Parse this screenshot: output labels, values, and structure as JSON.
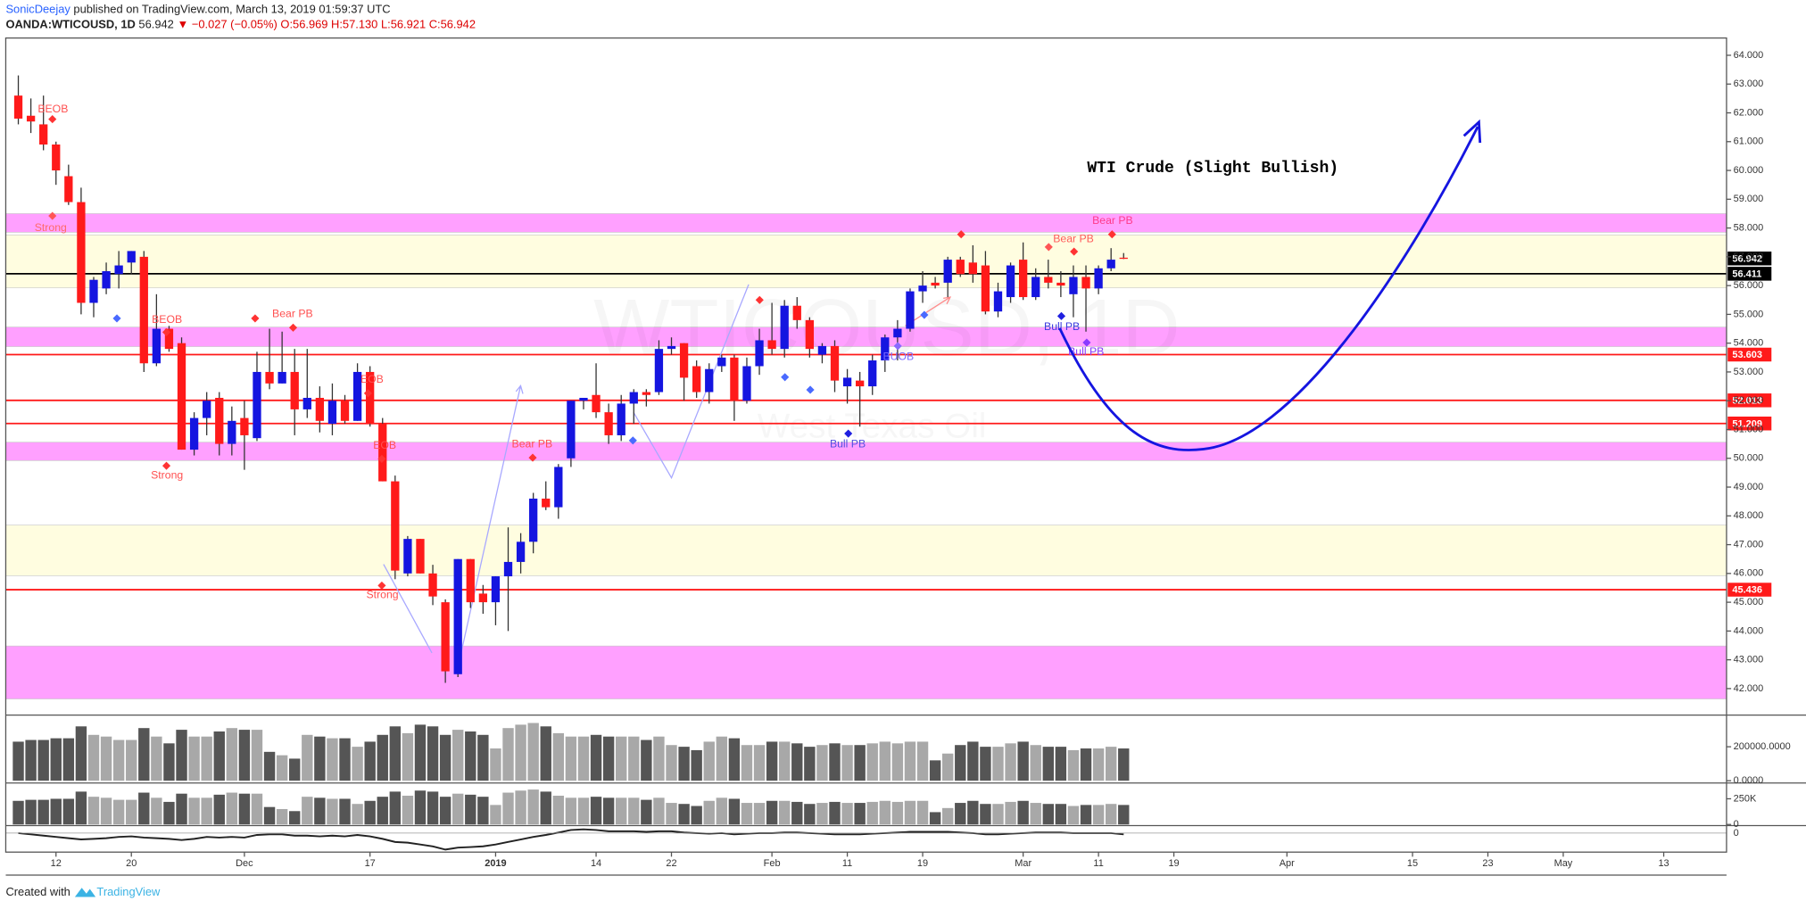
{
  "header": {
    "author": "SonicDeejay",
    "published": "published on TradingView.com, March 13, 2019 01:59:37 UTC",
    "symbol": "OANDA:WTICOUSD, 1D",
    "last": "56.942",
    "change": "▼ −0.027 (−0.05%)",
    "ohlc": "O:56.969 H:57.130 L:56.921 C:56.942"
  },
  "footer": {
    "created": "Created with",
    "brand": "TradingView"
  },
  "chart_data": {
    "type": "candlestick",
    "title": "WTI Crude (Slight Bullish)",
    "watermark": "WTICOUSD, 1D",
    "watermark_sub": "West Texas Oil",
    "up_color": "#1515e0",
    "down_color": "#ff1a1a",
    "open": [
      62.6,
      61.9,
      61.6,
      60.9,
      59.8,
      58.9,
      55.4,
      55.9,
      56.4,
      56.8,
      57.0,
      53.3,
      54.5,
      54.0,
      50.3,
      51.4,
      52.1,
      50.5,
      51.4,
      50.7,
      53.0,
      52.6,
      53.0,
      51.7,
      52.1,
      51.2,
      52.0,
      51.3,
      53.0,
      51.2,
      49.2,
      46.0,
      47.2,
      46.0,
      45.0,
      42.5,
      46.5,
      45.3,
      45.0,
      45.9,
      46.4,
      47.1,
      48.6,
      48.3,
      50.0,
      52.0,
      52.2,
      51.6,
      50.8,
      51.9,
      52.3,
      52.3,
      53.8,
      54.0,
      53.2,
      52.3,
      53.2,
      53.5,
      52.0,
      53.2,
      54.1,
      53.8,
      55.3,
      54.8,
      53.6,
      53.9,
      52.5,
      52.7,
      52.5,
      53.4,
      54.2,
      54.5,
      55.8,
      56.1,
      56.1,
      56.9,
      56.8,
      56.7,
      55.1,
      55.6,
      56.9,
      55.6,
      56.3,
      56.1,
      55.7,
      56.3,
      55.9,
      56.6,
      56.969
    ],
    "high": [
      63.3,
      62.5,
      62.6,
      61.0,
      60.2,
      59.4,
      56.3,
      56.8,
      57.2,
      57.2,
      57.2,
      55.7,
      54.6,
      54.2,
      51.6,
      52.3,
      52.3,
      51.8,
      52.0,
      53.7,
      54.5,
      54.4,
      53.8,
      53.8,
      52.5,
      52.6,
      52.2,
      53.3,
      53.2,
      51.4,
      49.4,
      47.3,
      47.2,
      46.3,
      45.1,
      46.5,
      46.5,
      45.6,
      45.9,
      47.6,
      47.4,
      48.8,
      49.2,
      49.8,
      52.0,
      52.1,
      53.3,
      51.9,
      52.2,
      52.4,
      52.4,
      54.1,
      54.2,
      54.0,
      53.4,
      53.3,
      53.6,
      53.6,
      53.5,
      54.5,
      55.4,
      55.5,
      55.6,
      54.9,
      54.0,
      54.1,
      53.1,
      53.0,
      53.6,
      54.3,
      54.8,
      55.9,
      56.5,
      56.3,
      57.0,
      57.0,
      57.4,
      57.2,
      56.1,
      56.8,
      57.5,
      56.6,
      56.9,
      56.5,
      56.7,
      56.7,
      56.7,
      57.3,
      57.13
    ],
    "low": [
      61.6,
      61.3,
      60.7,
      59.5,
      58.8,
      55.0,
      54.9,
      55.7,
      55.9,
      56.4,
      53.0,
      53.2,
      53.7,
      50.3,
      50.1,
      50.8,
      50.1,
      50.1,
      49.6,
      50.6,
      52.4,
      52.6,
      50.8,
      51.4,
      50.9,
      50.8,
      51.2,
      51.3,
      51.1,
      49.2,
      45.8,
      45.9,
      46.0,
      44.9,
      42.2,
      42.4,
      44.8,
      44.6,
      44.2,
      44.0,
      46.0,
      46.7,
      48.2,
      47.9,
      49.7,
      51.7,
      51.4,
      50.5,
      50.6,
      51.2,
      51.8,
      52.2,
      53.6,
      52.0,
      52.1,
      51.9,
      53.0,
      51.3,
      51.9,
      52.9,
      53.6,
      53.5,
      54.5,
      53.5,
      53.3,
      52.3,
      51.9,
      51.1,
      52.2,
      53.0,
      53.4,
      54.4,
      55.4,
      55.9,
      55.6,
      56.3,
      56.1,
      55.0,
      54.9,
      55.4,
      55.5,
      55.5,
      55.9,
      55.6,
      54.9,
      54.4,
      55.7,
      56.5,
      56.921
    ],
    "close": [
      61.8,
      61.7,
      60.9,
      60.0,
      58.9,
      55.4,
      56.2,
      56.5,
      56.7,
      57.2,
      53.3,
      54.5,
      53.8,
      50.3,
      51.4,
      52.0,
      50.5,
      51.3,
      50.8,
      53.0,
      52.6,
      53.0,
      51.7,
      52.1,
      51.3,
      52.0,
      51.3,
      53.0,
      51.2,
      49.2,
      46.1,
      47.2,
      46.0,
      45.2,
      42.6,
      46.5,
      45.0,
      45.0,
      45.9,
      46.4,
      47.1,
      48.6,
      48.3,
      49.7,
      52.0,
      52.1,
      51.6,
      50.8,
      51.9,
      52.3,
      52.2,
      53.8,
      53.9,
      52.8,
      52.3,
      53.1,
      53.5,
      52.0,
      53.2,
      54.1,
      53.8,
      55.3,
      54.8,
      53.8,
      53.9,
      52.7,
      52.8,
      52.5,
      53.4,
      54.2,
      54.5,
      55.8,
      56.0,
      56.0,
      56.9,
      56.4,
      56.4,
      55.1,
      55.8,
      56.7,
      55.6,
      56.3,
      56.1,
      56.0,
      56.3,
      55.9,
      56.6,
      56.9,
      56.942
    ],
    "ylim": [
      41.12,
      64.6
    ],
    "yticks": [
      {
        "value": 42,
        "label": "42.000"
      },
      {
        "value": 43,
        "label": "43.000"
      },
      {
        "value": 44,
        "label": "44.000"
      },
      {
        "value": 45,
        "label": "45.000"
      },
      {
        "value": 46,
        "label": "46.000"
      },
      {
        "value": 47,
        "label": "47.000"
      },
      {
        "value": 48,
        "label": "48.000"
      },
      {
        "value": 49,
        "label": "49.000"
      },
      {
        "value": 50,
        "label": "50.000"
      },
      {
        "value": 51,
        "label": "51.000"
      },
      {
        "value": 52,
        "label": "52.000"
      },
      {
        "value": 53,
        "label": "53.000"
      },
      {
        "value": 54,
        "label": "54.000"
      },
      {
        "value": 55,
        "label": "55.000"
      },
      {
        "value": 56,
        "label": "56.000"
      },
      {
        "value": 57,
        "label": "57.000"
      },
      {
        "value": 58,
        "label": "58.000"
      },
      {
        "value": 59,
        "label": "59.000"
      },
      {
        "value": 60,
        "label": "60.000"
      },
      {
        "value": 61,
        "label": "61.000"
      },
      {
        "value": 62,
        "label": "62.000"
      },
      {
        "value": 63,
        "label": "63.000"
      },
      {
        "value": 64,
        "label": "64.000"
      }
    ],
    "xlim": [
      -1,
      136
    ],
    "xticks": [
      {
        "value": 3,
        "label": "12"
      },
      {
        "value": 9,
        "label": "20"
      },
      {
        "value": 18,
        "label": "Dec"
      },
      {
        "value": 28,
        "label": "17"
      },
      {
        "value": 38,
        "label": "2019"
      },
      {
        "value": 46,
        "label": "14"
      },
      {
        "value": 52,
        "label": "22"
      },
      {
        "value": 60,
        "label": "Feb"
      },
      {
        "value": 66,
        "label": "11"
      },
      {
        "value": 72,
        "label": "19"
      },
      {
        "value": 80,
        "label": "Mar"
      },
      {
        "value": 86,
        "label": "11"
      },
      {
        "value": 92,
        "label": "19"
      },
      {
        "value": 101,
        "label": "Apr"
      },
      {
        "value": 111,
        "label": "15"
      },
      {
        "value": 117,
        "label": "23"
      },
      {
        "value": 123,
        "label": "May"
      },
      {
        "value": 131,
        "label": "13"
      }
    ],
    "zones": [
      {
        "from": 57.85,
        "to": 58.5,
        "color": "#ff80ff"
      },
      {
        "from": 55.92,
        "to": 57.76,
        "color": "#fffde0"
      },
      {
        "from": 53.88,
        "to": 54.56,
        "color": "#ff80ff"
      },
      {
        "from": 49.92,
        "to": 50.56,
        "color": "#ff80ff"
      },
      {
        "from": 45.92,
        "to": 47.68,
        "color": "#fffde0"
      },
      {
        "from": 41.64,
        "to": 43.48,
        "color": "#ff80ff"
      }
    ],
    "levels": [
      {
        "value": 56.411,
        "color": "#000000"
      },
      {
        "value": 53.603,
        "color": "#ff1a1a"
      },
      {
        "value": 52.013,
        "color": "#ff1a1a"
      },
      {
        "value": 51.209,
        "color": "#ff1a1a"
      },
      {
        "value": 45.436,
        "color": "#ff1a1a"
      }
    ],
    "last_price": 56.942,
    "annotations": [
      "BEOB",
      "Strong",
      "BEOB",
      "Bear PB",
      "Strong",
      "EOB",
      "EOB",
      "Strong",
      "Bear PB",
      "Bull PB",
      "BUOB",
      "Bear PB",
      "Bear PB",
      "Bull PB",
      "Bull PB"
    ],
    "volume": [
      230000,
      240000,
      240000,
      250000,
      250000,
      320000,
      270000,
      260000,
      240000,
      240000,
      310000,
      260000,
      220000,
      300000,
      260000,
      260000,
      290000,
      310000,
      300000,
      300000,
      170000,
      150000,
      130000,
      270000,
      260000,
      250000,
      250000,
      200000,
      230000,
      270000,
      320000,
      280000,
      330000,
      320000,
      270000,
      300000,
      290000,
      270000,
      190000,
      310000,
      330000,
      340000,
      320000,
      280000,
      260000,
      260000,
      270000,
      260000,
      260000,
      260000,
      240000,
      260000,
      210000,
      200000,
      180000,
      230000,
      260000,
      250000,
      210000,
      210000,
      230000,
      230000,
      220000,
      200000,
      210000,
      220000,
      210000,
      210000,
      220000,
      230000,
      220000,
      230000,
      230000,
      120000,
      160000,
      210000,
      230000,
      200000,
      200000,
      220000,
      230000,
      210000,
      200000,
      200000,
      180000,
      190000,
      190000,
      200000,
      190000
    ],
    "volume_panes": [
      {
        "ylim": [
          0,
          373000
        ],
        "yticks": [
          {
            "value": 200000,
            "label": "200000.0000"
          },
          {
            "value": 0,
            "label": "0.0000"
          }
        ]
      },
      {
        "ylim": [
          0,
          370000
        ],
        "yticks": [
          {
            "value": 250000,
            "label": "250K"
          },
          0
        ]
      }
    ],
    "oscillator": {
      "color": "#222222",
      "ylim": [
        -3,
        1
      ],
      "yticks": [
        0
      ],
      "values": [
        0.0,
        -0.2,
        -0.4,
        -0.6,
        -0.8,
        -1.0,
        -0.9,
        -0.8,
        -0.6,
        -0.5,
        -0.7,
        -0.8,
        -0.9,
        -1.1,
        -0.9,
        -0.6,
        -0.7,
        -0.6,
        -0.7,
        -0.3,
        -0.2,
        -0.2,
        -0.4,
        -0.4,
        -0.5,
        -0.4,
        -0.5,
        -0.3,
        -0.5,
        -0.9,
        -1.4,
        -1.5,
        -1.8,
        -2.1,
        -2.6,
        -2.3,
        -2.2,
        -2.1,
        -1.8,
        -1.4,
        -1.0,
        -0.6,
        -0.3,
        0.1,
        0.5,
        0.6,
        0.5,
        0.3,
        0.3,
        0.3,
        0.2,
        0.3,
        0.3,
        0.1,
        0.0,
        -0.1,
        0.0,
        -0.2,
        -0.1,
        0.0,
        0.0,
        0.1,
        0.1,
        0.0,
        -0.1,
        -0.2,
        -0.2,
        -0.2,
        -0.1,
        0.0,
        0.1,
        0.2,
        0.2,
        0.2,
        0.2,
        0.1,
        0.0,
        -0.2,
        -0.2,
        -0.1,
        0.0,
        0.1,
        0.1,
        0.1,
        0.0,
        0.0,
        0.0,
        0.0,
        -0.2
      ]
    }
  }
}
